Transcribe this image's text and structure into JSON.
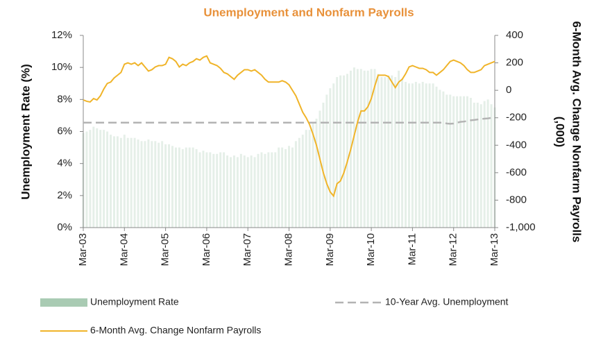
{
  "chart_data": {
    "type": "combo",
    "title": "Unemployment and Nonfarm Payrolls",
    "ylabel": "Unemployment Rate (%)",
    "y2label": [
      "6-Month Avg. Change Nonfarm Payrolls",
      "(,000)"
    ],
    "categories": [
      "Mar-03",
      null,
      null,
      null,
      null,
      null,
      null,
      null,
      null,
      null,
      null,
      null,
      "Mar-04",
      null,
      null,
      null,
      null,
      null,
      null,
      null,
      null,
      null,
      null,
      null,
      "Mar-05",
      null,
      null,
      null,
      null,
      null,
      null,
      null,
      null,
      null,
      null,
      null,
      "Mar-06",
      null,
      null,
      null,
      null,
      null,
      null,
      null,
      null,
      null,
      null,
      null,
      "Mar-07",
      null,
      null,
      null,
      null,
      null,
      null,
      null,
      null,
      null,
      null,
      null,
      "Mar-08",
      null,
      null,
      null,
      null,
      null,
      null,
      null,
      null,
      null,
      null,
      null,
      "Mar-09",
      null,
      null,
      null,
      null,
      null,
      null,
      null,
      null,
      null,
      null,
      null,
      "Mar-10",
      null,
      null,
      null,
      null,
      null,
      null,
      null,
      null,
      null,
      null,
      null,
      "Mar-11",
      null,
      null,
      null,
      null,
      null,
      null,
      null,
      null,
      null,
      null,
      null,
      "Mar-12",
      null,
      null,
      null,
      null,
      null,
      null,
      null,
      null,
      null,
      null,
      null,
      "Mar-13"
    ],
    "ylim": [
      0,
      12
    ],
    "yticks": [
      {
        "value": 0,
        "label": "0%"
      },
      {
        "value": 2,
        "label": "2%"
      },
      {
        "value": 4,
        "label": "4%"
      },
      {
        "value": 6,
        "label": "6%"
      },
      {
        "value": 8,
        "label": "8%"
      },
      {
        "value": 10,
        "label": "10%"
      },
      {
        "value": 12,
        "label": "12%"
      }
    ],
    "y2lim": [
      -1000,
      400
    ],
    "y2ticks": [
      {
        "value": -1000,
        "label": "-1,000"
      },
      -800,
      -600,
      -400,
      -200,
      0,
      200,
      400
    ],
    "series": [
      {
        "name": "Unemployment Rate",
        "type": "bar",
        "color": "#a9cbb3",
        "values": [
          5.9,
          6.0,
          6.1,
          6.3,
          6.2,
          6.1,
          6.1,
          6.0,
          5.8,
          5.7,
          5.7,
          5.6,
          5.8,
          5.6,
          5.6,
          5.6,
          5.5,
          5.4,
          5.4,
          5.5,
          5.4,
          5.4,
          5.3,
          5.4,
          5.2,
          5.2,
          5.1,
          5.0,
          5.0,
          4.9,
          5.0,
          5.0,
          5.0,
          4.9,
          4.7,
          4.8,
          4.7,
          4.7,
          4.6,
          4.6,
          4.7,
          4.7,
          4.5,
          4.4,
          4.5,
          4.4,
          4.6,
          4.5,
          4.4,
          4.5,
          4.4,
          4.6,
          4.7,
          4.6,
          4.7,
          4.7,
          4.7,
          5.0,
          5.0,
          4.9,
          5.1,
          5.0,
          5.4,
          5.6,
          5.8,
          6.1,
          6.1,
          6.5,
          6.8,
          7.3,
          7.8,
          8.3,
          8.7,
          9.0,
          9.4,
          9.5,
          9.5,
          9.6,
          9.8,
          10.0,
          9.9,
          9.9,
          9.8,
          9.8,
          9.9,
          9.9,
          9.6,
          9.4,
          9.4,
          9.5,
          9.5,
          9.4,
          9.8,
          9.3,
          9.1,
          9.0,
          9.0,
          9.1,
          9.0,
          9.1,
          9.0,
          9.0,
          9.0,
          8.8,
          8.6,
          8.5,
          8.3,
          8.3,
          8.2,
          8.2,
          8.2,
          8.2,
          8.2,
          8.1,
          7.8,
          7.8,
          7.7,
          7.9,
          8.0,
          7.7,
          7.5
        ]
      },
      {
        "name": "10-Year Avg. Unemployment",
        "type": "line",
        "dashed": true,
        "color": "#b3b3b3",
        "values": [
          6.55,
          6.55,
          6.55,
          6.55,
          6.55,
          6.55,
          6.55,
          6.55,
          6.55,
          6.55,
          6.55,
          6.55,
          6.55,
          6.55,
          6.55,
          6.55,
          6.55,
          6.55,
          6.55,
          6.55,
          6.55,
          6.55,
          6.55,
          6.55,
          6.55,
          6.55,
          6.55,
          6.55,
          6.55,
          6.55,
          6.55,
          6.55,
          6.55,
          6.55,
          6.55,
          6.55,
          6.55,
          6.55,
          6.55,
          6.55,
          6.55,
          6.55,
          6.55,
          6.55,
          6.55,
          6.55,
          6.55,
          6.55,
          6.55,
          6.55,
          6.55,
          6.55,
          6.55,
          6.55,
          6.55,
          6.55,
          6.55,
          6.55,
          6.55,
          6.55,
          6.55,
          6.55,
          6.55,
          6.55,
          6.55,
          6.55,
          6.55,
          6.55,
          6.55,
          6.55,
          6.55,
          6.55,
          6.55,
          6.55,
          6.55,
          6.55,
          6.55,
          6.55,
          6.55,
          6.55,
          6.55,
          6.55,
          6.55,
          6.55,
          6.55,
          6.55,
          6.55,
          6.55,
          6.55,
          6.55,
          6.55,
          6.55,
          6.55,
          6.55,
          6.55,
          6.55,
          6.55,
          6.55,
          6.55,
          6.55,
          6.55,
          6.55,
          6.55,
          6.55,
          6.55,
          6.55,
          6.5,
          6.48,
          6.5,
          6.55,
          6.6,
          6.62,
          6.65,
          6.7,
          6.72,
          6.75,
          6.78,
          6.8,
          6.82,
          6.85,
          6.9
        ]
      },
      {
        "name": "6-Month Avg. Change Nonfarm Payrolls",
        "type": "line",
        "axis": "y2",
        "color": "#f0b429",
        "values": [
          -70,
          -80,
          -85,
          -60,
          -70,
          -40,
          10,
          50,
          60,
          90,
          110,
          130,
          190,
          200,
          190,
          200,
          180,
          200,
          170,
          140,
          150,
          170,
          180,
          180,
          190,
          240,
          230,
          210,
          170,
          190,
          180,
          200,
          210,
          230,
          220,
          240,
          250,
          200,
          190,
          180,
          160,
          130,
          120,
          100,
          80,
          110,
          130,
          150,
          150,
          140,
          150,
          130,
          110,
          80,
          60,
          60,
          60,
          60,
          70,
          60,
          40,
          0,
          -40,
          -100,
          -160,
          -200,
          -250,
          -320,
          -400,
          -500,
          -600,
          -680,
          -740,
          -770,
          -680,
          -660,
          -600,
          -520,
          -430,
          -330,
          -230,
          -150,
          -150,
          -120,
          -60,
          30,
          110,
          110,
          110,
          100,
          60,
          20,
          60,
          80,
          120,
          170,
          180,
          170,
          160,
          160,
          150,
          130,
          130,
          110,
          130,
          150,
          180,
          210,
          220,
          210,
          200,
          180,
          150,
          130,
          130,
          140,
          150,
          180,
          190,
          200,
          210
        ]
      }
    ]
  }
}
